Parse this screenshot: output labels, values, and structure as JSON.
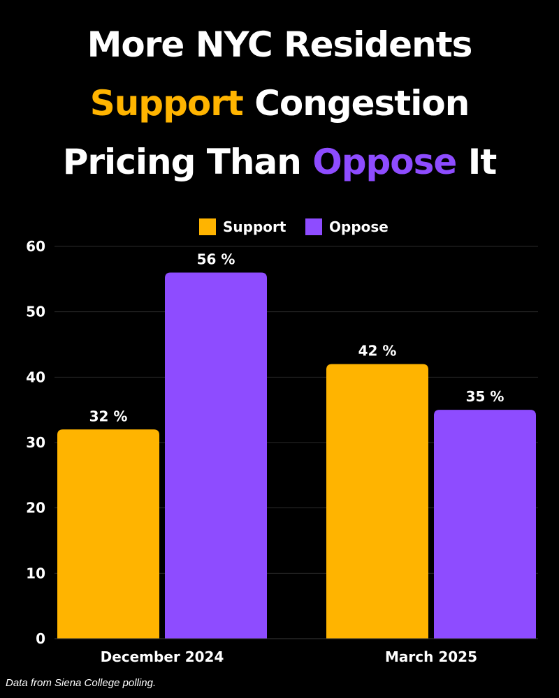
{
  "title": {
    "line1": "More NYC Residents",
    "line2_highlight": "Support",
    "line2_rest": " Congestion",
    "line3_start": "Pricing Than ",
    "line3_highlight": "Oppose",
    "line3_end": " It"
  },
  "colors": {
    "background": "#000000",
    "support": "#ffb400",
    "oppose": "#8e4cff",
    "text": "#ffffff",
    "grid": "#2a2a2a"
  },
  "source_note": "Data from Siena College polling.",
  "chart_data": {
    "type": "bar",
    "categories": [
      "December 2024",
      "March 2025"
    ],
    "series": [
      {
        "name": "Support",
        "values": [
          32,
          42
        ],
        "color": "#ffb400"
      },
      {
        "name": "Oppose",
        "values": [
          56,
          35
        ],
        "color": "#8e4cff"
      }
    ],
    "data_labels": [
      [
        "32 %",
        "42 %"
      ],
      [
        "56 %",
        "35 %"
      ]
    ],
    "ylim": [
      0,
      60
    ],
    "yticks": [
      0,
      10,
      20,
      30,
      40,
      50,
      60
    ],
    "grid": true,
    "legend_position": "top-center",
    "xlabel": "",
    "ylabel": ""
  }
}
